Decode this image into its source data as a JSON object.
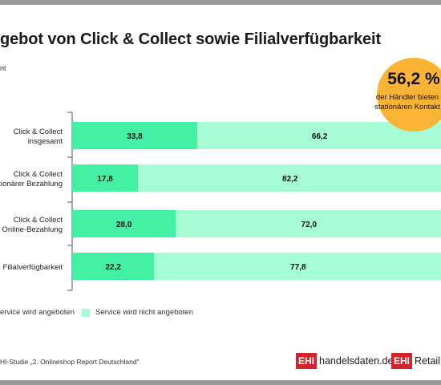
{
  "header": {
    "title": "gebot von Click & Collect sowie Filialverfügbarkeit",
    "subtitle": "nt"
  },
  "badge": {
    "value": "56,2 %",
    "line1": "der Händler bieten",
    "line2": "stationären Kontakt"
  },
  "colors": {
    "offered": "#44f0a4",
    "not_offered": "#a6fcd4",
    "badge": "#f9b436",
    "logo_red": "#d4242b"
  },
  "chart_data": {
    "type": "bar",
    "orientation": "horizontal-stacked",
    "unit": "%",
    "categories": [
      [
        "Click & Collect",
        "insgesamt"
      ],
      [
        "Click & Collect",
        "tionärer Bezahlung"
      ],
      [
        "Click & Collect",
        "Online-Bezahlung"
      ],
      [
        "Filialverfügbarkeit"
      ]
    ],
    "series": [
      {
        "name": "ervice wird angeboten",
        "values": [
          33.8,
          17.8,
          28.0,
          22.2
        ],
        "labels": [
          "33,8",
          "17,8",
          "28,0",
          "22,2"
        ]
      },
      {
        "name": "Service wird nicht angeboten",
        "values": [
          66.2,
          82.2,
          72.0,
          77.8
        ],
        "labels": [
          "66,2",
          "82,2",
          "72,0",
          "77,8"
        ]
      }
    ],
    "xlim": [
      0,
      100
    ],
    "grid": false,
    "legend": "bottom"
  },
  "footer": {
    "source": "HI-Studie „2. Onlineshop Report Deutschland\"",
    "logo1_box": "EHI",
    "logo1_name": "handelsdaten.de",
    "logo2_box": "EHI",
    "logo2_name": "Retail I"
  }
}
